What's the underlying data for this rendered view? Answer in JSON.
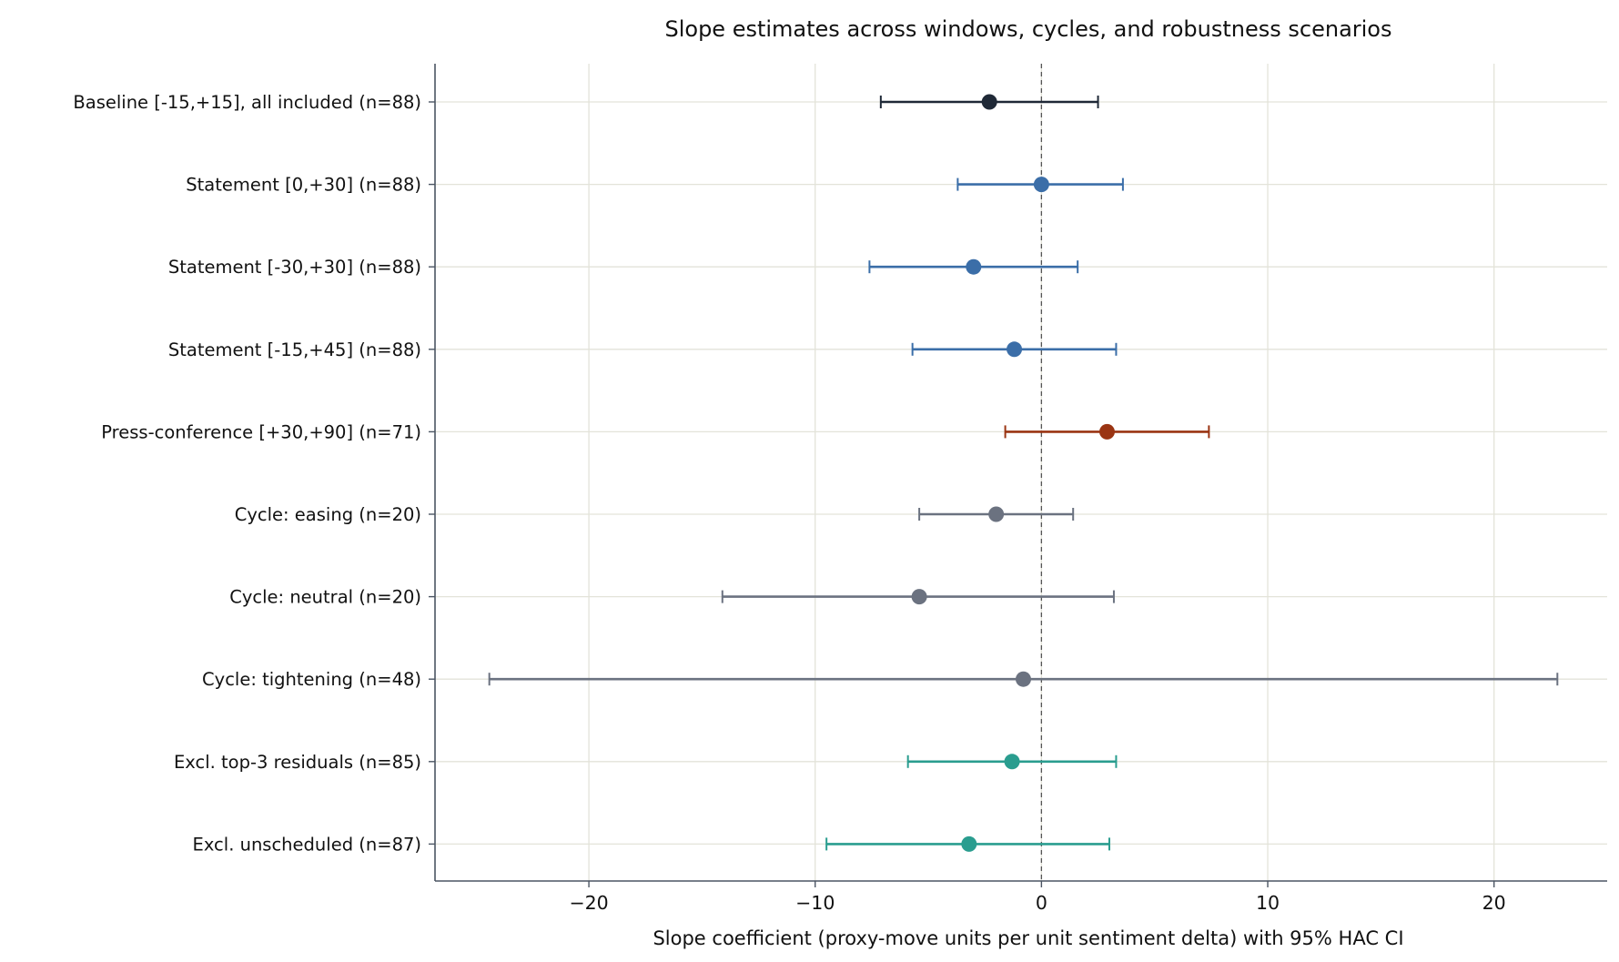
{
  "chart_data": {
    "type": "scatter",
    "title": "Slope estimates across windows, cycles, and robustness scenarios",
    "xlabel": "Slope coefficient (proxy-move units per unit sentiment delta) with 95% HAC CI",
    "ylabel": "",
    "xlim": [
      -26.8,
      25
    ],
    "xticks": [
      -20,
      -10,
      0,
      10,
      20
    ],
    "xtick_labels": [
      "−20",
      "−10",
      "0",
      "10",
      "20"
    ],
    "reference_line": {
      "x": 0,
      "style": "dashed"
    },
    "grid": true,
    "legend": "none",
    "rows": [
      {
        "label": "Baseline [-15,+15], all included (n=88)",
        "estimate": -2.3,
        "ci_low": -7.1,
        "ci_high": 2.5,
        "color": "#1f2937"
      },
      {
        "label": "Statement [0,+30] (n=88)",
        "estimate": 0.0,
        "ci_low": -3.7,
        "ci_high": 3.6,
        "color": "#3b6ea8"
      },
      {
        "label": "Statement [-30,+30] (n=88)",
        "estimate": -3.0,
        "ci_low": -7.6,
        "ci_high": 1.6,
        "color": "#3b6ea8"
      },
      {
        "label": "Statement [-15,+45] (n=88)",
        "estimate": -1.2,
        "ci_low": -5.7,
        "ci_high": 3.3,
        "color": "#3b6ea8"
      },
      {
        "label": "Press-conference [+30,+90] (n=71)",
        "estimate": 2.9,
        "ci_low": -1.6,
        "ci_high": 7.4,
        "color": "#9a3412"
      },
      {
        "label": "Cycle: easing (n=20)",
        "estimate": -2.0,
        "ci_low": -5.4,
        "ci_high": 1.4,
        "color": "#6b7280"
      },
      {
        "label": "Cycle: neutral (n=20)",
        "estimate": -5.4,
        "ci_low": -14.1,
        "ci_high": 3.2,
        "color": "#6b7280"
      },
      {
        "label": "Cycle: tightening (n=48)",
        "estimate": -0.8,
        "ci_low": -24.4,
        "ci_high": 22.8,
        "color": "#6b7280"
      },
      {
        "label": "Excl. top-3 residuals (n=85)",
        "estimate": -1.3,
        "ci_low": -5.9,
        "ci_high": 3.3,
        "color": "#2a9d8f"
      },
      {
        "label": "Excl. unscheduled (n=87)",
        "estimate": -3.2,
        "ci_low": -9.5,
        "ci_high": 3.0,
        "color": "#2a9d8f"
      }
    ],
    "colors": {
      "grid": "#e3e3d9",
      "axis": "#4b5563",
      "reference": "#555555"
    }
  }
}
